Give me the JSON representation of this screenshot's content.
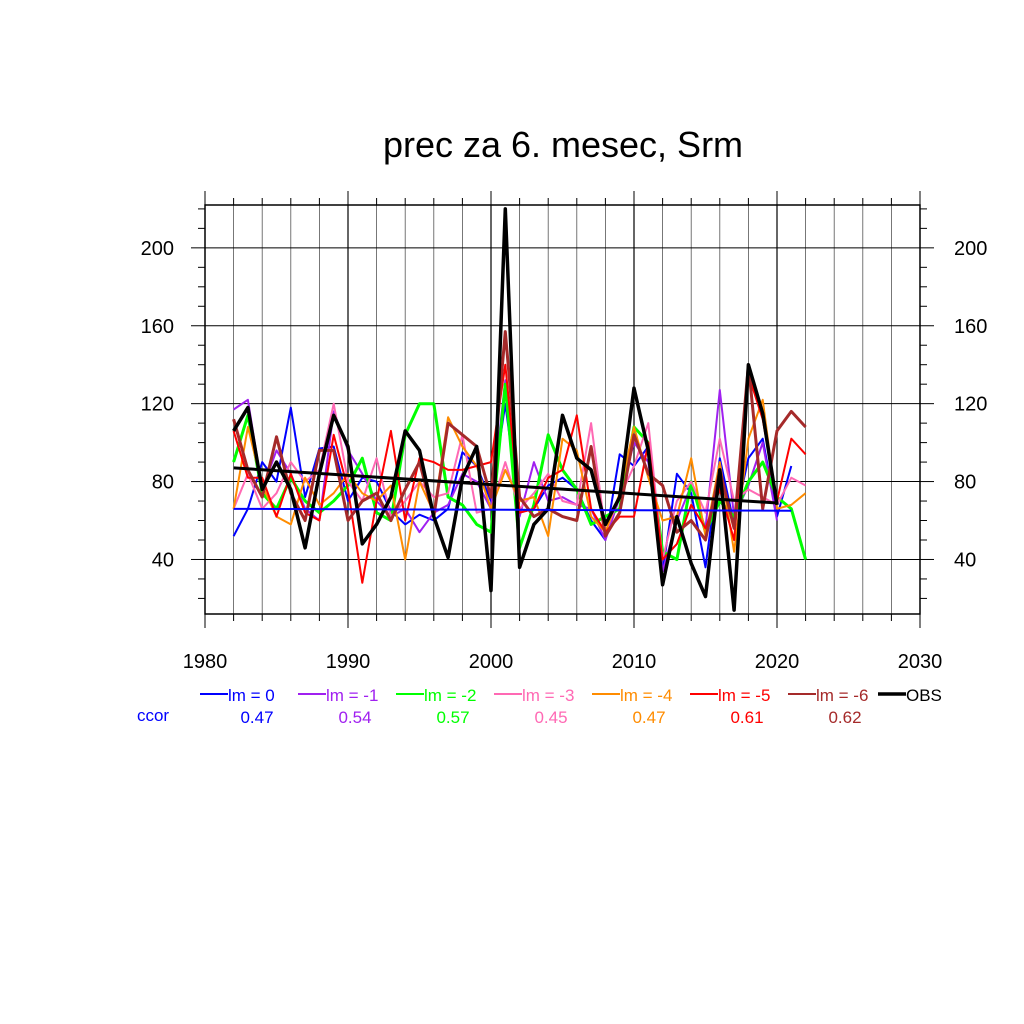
{
  "chart_data": {
    "type": "line",
    "title": "prec za 6. mesec, Srm",
    "xlabel": "",
    "ylabel": "",
    "xlim": [
      1980,
      2030
    ],
    "ylim": [
      12,
      222
    ],
    "x_ticks": [
      1980,
      1990,
      2000,
      2010,
      2020,
      2030
    ],
    "y_ticks": [
      40,
      80,
      120,
      160,
      200
    ],
    "grid": true,
    "ccor_label": "ccor",
    "series": [
      {
        "name": "lm = 0",
        "color": "#0000ff",
        "ccor": "0.47",
        "width": 2,
        "x": [
          1982,
          1983,
          1984,
          1985,
          1986,
          1987,
          1988,
          1989,
          1990,
          1991,
          1992,
          1993,
          1994,
          1995,
          1996,
          1997,
          1998,
          1999,
          2000,
          2001,
          2002,
          2003,
          2004,
          2005,
          2006,
          2007,
          2008,
          2009,
          2010,
          2011,
          2012,
          2013,
          2014,
          2015,
          2016,
          2017,
          2018,
          2019,
          2020,
          2021
        ],
        "values": [
          52,
          66,
          90,
          80,
          118,
          72,
          97,
          98,
          70,
          82,
          80,
          65,
          58,
          63,
          60,
          66,
          95,
          88,
          70,
          120,
          64,
          66,
          78,
          82,
          76,
          60,
          50,
          94,
          88,
          98,
          34,
          84,
          74,
          36,
          92,
          58,
          92,
          102,
          62,
          88
        ]
      },
      {
        "name": "lm = -1",
        "color": "#a020f0",
        "ccor": "0.54",
        "width": 2,
        "x": [
          1982,
          1983,
          1984,
          1985,
          1986,
          1987,
          1988,
          1989,
          1990,
          1991,
          1992,
          1993,
          1994,
          1995,
          1996,
          1997,
          1998,
          1999,
          2000,
          2001,
          2002,
          2003,
          2004,
          2005,
          2006,
          2007,
          2008,
          2009,
          2010,
          2011,
          2012,
          2013,
          2014,
          2015,
          2016,
          2017,
          2018,
          2019,
          2020
        ],
        "values": [
          117,
          122,
          76,
          96,
          84,
          66,
          60,
          116,
          96,
          84,
          70,
          62,
          66,
          54,
          64,
          68,
          84,
          80,
          66,
          132,
          62,
          90,
          70,
          72,
          68,
          66,
          50,
          72,
          100,
          90,
          34,
          60,
          78,
          56,
          127,
          62,
          78,
          100,
          60
        ]
      },
      {
        "name": "lm = -2",
        "color": "#00ff00",
        "ccor": "0.57",
        "width": 3,
        "x": [
          1982,
          1983,
          1984,
          1985,
          1986,
          1987,
          1988,
          1989,
          1990,
          1991,
          1992,
          1993,
          1994,
          1995,
          1996,
          1997,
          1998,
          1999,
          2000,
          2001,
          2002,
          2003,
          2004,
          2005,
          2006,
          2007,
          2008,
          2009,
          2010,
          2011,
          2012,
          2013,
          2014,
          2015,
          2016,
          2017,
          2018,
          2019,
          2020,
          2021,
          2022
        ],
        "values": [
          90,
          114,
          74,
          66,
          82,
          70,
          64,
          70,
          78,
          92,
          64,
          60,
          104,
          120,
          120,
          72,
          68,
          58,
          54,
          130,
          46,
          68,
          104,
          86,
          76,
          58,
          62,
          66,
          108,
          100,
          44,
          40,
          80,
          54,
          70,
          62,
          80,
          90,
          72,
          66,
          40
        ]
      },
      {
        "name": "lm = -3",
        "color": "#ff69b4",
        "ccor": "0.45",
        "width": 2,
        "x": [
          1982,
          1983,
          1984,
          1985,
          1986,
          1987,
          1988,
          1989,
          1990,
          1991,
          1992,
          1993,
          1994,
          1995,
          1996,
          1997,
          1998,
          1999,
          2000,
          2001,
          2002,
          2003,
          2004,
          2005,
          2006,
          2007,
          2008,
          2009,
          2010,
          2011,
          2012,
          2013,
          2014,
          2015,
          2016,
          2017,
          2018,
          2019,
          2020,
          2021,
          2022
        ],
        "values": [
          66,
          84,
          66,
          74,
          90,
          80,
          86,
          120,
          80,
          70,
          92,
          62,
          70,
          80,
          72,
          74,
          104,
          64,
          66,
          90,
          66,
          74,
          84,
          70,
          68,
          110,
          54,
          72,
          88,
          110,
          40,
          70,
          80,
          64,
          102,
          70,
          76,
          72,
          68,
          82,
          78
        ]
      },
      {
        "name": "lm = -4",
        "color": "#ff8c00",
        "ccor": "0.47",
        "width": 2,
        "x": [
          1982,
          1983,
          1984,
          1985,
          1986,
          1987,
          1988,
          1989,
          1990,
          1991,
          1992,
          1993,
          1994,
          1995,
          1996,
          1997,
          1998,
          1999,
          2000,
          2001,
          2002,
          2003,
          2004,
          2005,
          2006,
          2007,
          2008,
          2009,
          2010,
          2011,
          2012,
          2013,
          2014,
          2015,
          2016,
          2017,
          2018,
          2019,
          2020,
          2021,
          2022
        ],
        "values": [
          66,
          108,
          78,
          62,
          58,
          82,
          68,
          74,
          84,
          74,
          70,
          78,
          40,
          80,
          64,
          113,
          98,
          88,
          66,
          86,
          70,
          72,
          52,
          102,
          96,
          62,
          54,
          74,
          108,
          82,
          60,
          62,
          92,
          52,
          90,
          44,
          102,
          122,
          66,
          68,
          74
        ]
      },
      {
        "name": "lm = -5",
        "color": "#ff0000",
        "ccor": "0.61",
        "width": 2,
        "x": [
          1982,
          1983,
          1984,
          1985,
          1986,
          1987,
          1988,
          1989,
          1990,
          1991,
          1992,
          1993,
          1994,
          1995,
          1996,
          1997,
          1998,
          1999,
          2000,
          2001,
          2002,
          2003,
          2004,
          2005,
          2006,
          2007,
          2008,
          2009,
          2010,
          2011,
          2012,
          2013,
          2014,
          2015,
          2016,
          2017,
          2018,
          2019,
          2020,
          2021,
          2022
        ],
        "values": [
          106,
          82,
          82,
          62,
          84,
          64,
          60,
          104,
          76,
          28,
          70,
          106,
          60,
          92,
          90,
          86,
          86,
          88,
          90,
          140,
          64,
          66,
          82,
          86,
          114,
          66,
          54,
          62,
          62,
          100,
          40,
          48,
          68,
          56,
          76,
          50,
          135,
          112,
          70,
          102,
          94
        ]
      },
      {
        "name": "lm = -6",
        "color": "#a52a2a",
        "ccor": "0.62",
        "width": 3,
        "x": [
          1982,
          1983,
          1984,
          1985,
          1986,
          1987,
          1988,
          1989,
          1990,
          1991,
          1992,
          1993,
          1994,
          1995,
          1996,
          1997,
          1998,
          1999,
          2000,
          2001,
          2002,
          2003,
          2004,
          2005,
          2006,
          2007,
          2008,
          2009,
          2010,
          2011,
          2012,
          2013,
          2014,
          2015,
          2016,
          2017,
          2018,
          2019,
          2020,
          2021,
          2022
        ],
        "values": [
          112,
          86,
          72,
          103,
          74,
          60,
          96,
          96,
          60,
          70,
          74,
          60,
          76,
          90,
          62,
          110,
          104,
          98,
          72,
          157,
          72,
          62,
          66,
          62,
          60,
          98,
          52,
          64,
          104,
          84,
          78,
          54,
          60,
          50,
          86,
          56,
          140,
          66,
          106,
          116,
          108
        ]
      },
      {
        "name": "OBS",
        "color": "#000000",
        "ccor": "",
        "width": 3.5,
        "x": [
          1982,
          1983,
          1984,
          1985,
          1986,
          1987,
          1988,
          1989,
          1990,
          1991,
          1992,
          1993,
          1994,
          1995,
          1996,
          1997,
          1998,
          1999,
          2000,
          2001,
          2002,
          2003,
          2004,
          2005,
          2006,
          2007,
          2008,
          2009,
          2010,
          2011,
          2012,
          2013,
          2014,
          2015,
          2016,
          2017,
          2018,
          2019,
          2020
        ],
        "values": [
          106,
          118,
          76,
          90,
          76,
          46,
          84,
          114,
          98,
          48,
          58,
          72,
          106,
          96,
          62,
          41,
          82,
          98,
          24,
          220,
          36,
          58,
          66,
          114,
          92,
          86,
          58,
          72,
          128,
          96,
          27,
          62,
          38,
          21,
          86,
          14,
          140,
          115,
          68
        ]
      }
    ],
    "trend_lines": [
      {
        "series": "lm = 0",
        "color": "#0000ff",
        "width": 2,
        "x": [
          1982,
          2021
        ],
        "values": [
          66,
          65
        ]
      },
      {
        "series": "OBS",
        "color": "#000000",
        "width": 3,
        "x": [
          1982,
          2020
        ],
        "values": [
          87,
          69
        ]
      }
    ]
  }
}
